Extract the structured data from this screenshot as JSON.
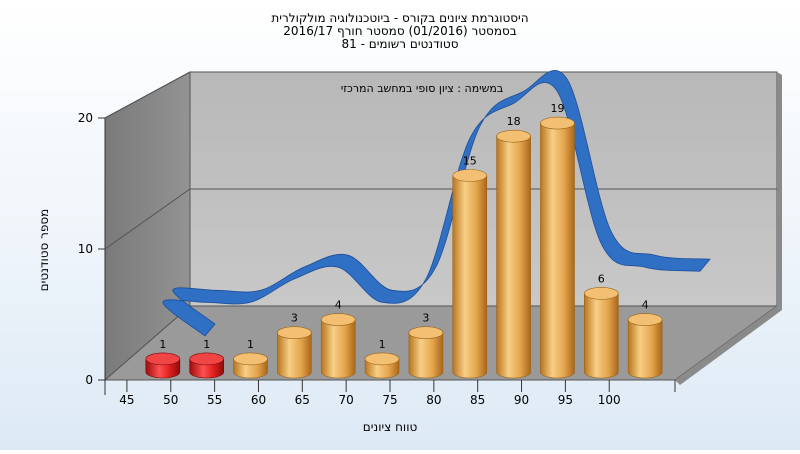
{
  "chart_data": {
    "type": "bar",
    "title_lines": [
      "היסטוגרמת ציונים בקורס - ביוטכנולוגיה מולקולרית",
      "בסמסטר  (01/2016)  סמסטר חורף 2016/17",
      "סטודנטים רשומים - 81"
    ],
    "annotation": "במשימה : ציון סופי במחשב המרכזי",
    "xlabel": "טווח ציונים",
    "ylabel": "מספר סטודנטים",
    "x_ticks": [
      "45",
      "50",
      "55",
      "60",
      "65",
      "70",
      "75",
      "80",
      "85",
      "90",
      "95",
      "100"
    ],
    "y_ticks": [
      "0",
      "10",
      "20"
    ],
    "ylim": [
      0,
      20
    ],
    "values": [
      1,
      1,
      1,
      3,
      4,
      1,
      3,
      15,
      18,
      19,
      6,
      4
    ],
    "bar_colors": [
      "#d81818",
      "#d81818",
      "#e0a24a",
      "#e0a24a",
      "#e0a24a",
      "#e0a24a",
      "#e0a24a",
      "#e0a24a",
      "#e0a24a",
      "#e0a24a",
      "#e0a24a",
      "#e0a24a"
    ],
    "trend_color": "#2f6fc4",
    "grid": true,
    "legend": "none"
  }
}
